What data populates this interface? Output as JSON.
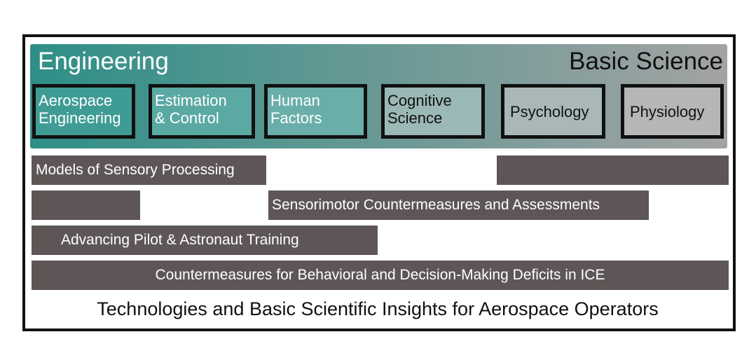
{
  "spectrum": {
    "left_label": "Engineering",
    "right_label": "Basic Science",
    "gradient_start": "#2e8f87",
    "gradient_end": "#a3a3a3"
  },
  "fields": [
    {
      "label": "Aerospace\nEngineering",
      "fill": "#3f9c95"
    },
    {
      "label": "Estimation\n& Control",
      "fill": "#5aa9a3"
    },
    {
      "label": "Human\nFactors",
      "fill": "#6aaea9"
    },
    {
      "label": "Cognitive\nScience",
      "fill": "#9ab8b5"
    },
    {
      "label": "Psychology",
      "fill": "#a9b8b7"
    },
    {
      "label": "Physiology",
      "fill": "#b6b6b6"
    }
  ],
  "bars": [
    {
      "label": "Models of Sensory Processing"
    },
    {
      "label": ""
    },
    {
      "label": ""
    },
    {
      "label": "Sensorimotor Countermeasures and Assessments"
    },
    {
      "label": "Advancing Pilot & Astronaut Training"
    },
    {
      "label": "Countermeasures for Behavioral and Decision-Making Deficits in ICE"
    }
  ],
  "bar_color": "#5e5656",
  "footer": "Technologies and Basic Scientific Insights for Aerospace Operators"
}
